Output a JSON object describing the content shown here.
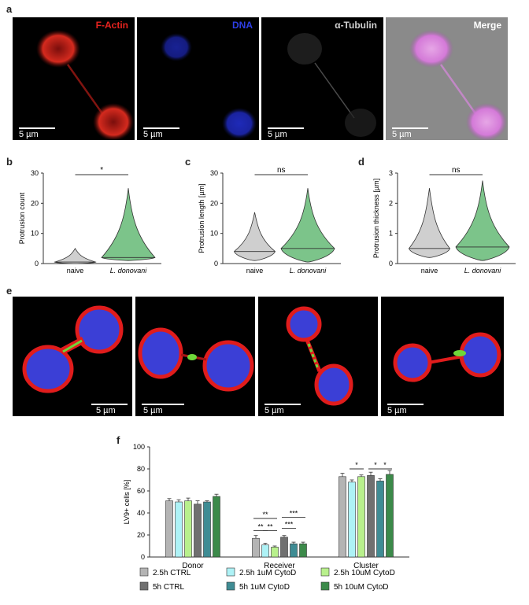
{
  "panel_a": {
    "letter": "a",
    "images": [
      {
        "label": "F-Actin",
        "label_color": "#e8231f",
        "scalebar": "5 µm"
      },
      {
        "label": "DNA",
        "label_color": "#2e3fe6",
        "scalebar": "5 µm"
      },
      {
        "label": "α-Tubulin",
        "label_color": "#d0d0d0",
        "scalebar": "5 µm"
      },
      {
        "label": "Merge",
        "label_color": "#ffffff",
        "scalebar": "5 µm"
      }
    ]
  },
  "panel_b": {
    "letter": "b",
    "ylabel": "Protrusion count",
    "yticks": [
      "0",
      "10",
      "20",
      "30"
    ],
    "categories": [
      "naive",
      "L. donovani"
    ],
    "significance": "*"
  },
  "panel_c": {
    "letter": "c",
    "ylabel": "Protrusion length [µm]",
    "yticks": [
      "0",
      "10",
      "20",
      "30"
    ],
    "categories": [
      "naive",
      "L. donovani"
    ],
    "significance": "ns"
  },
  "panel_d": {
    "letter": "d",
    "ylabel": "Protrusion thickness [µm]",
    "yticks": [
      "0",
      "1",
      "2",
      "3"
    ],
    "categories": [
      "naive",
      "L. donovani"
    ],
    "significance": "ns"
  },
  "panel_e": {
    "letter": "e",
    "scalebars": [
      "5 µm",
      "5 µm",
      "5 µm",
      "5 µm"
    ]
  },
  "panel_f": {
    "letter": "f"
  },
  "chart_data": [
    {
      "type": "violin",
      "panel": "b",
      "categories": [
        "naive",
        "L. donovani"
      ],
      "ylabel": "Protrusion count",
      "ylim": [
        0,
        30
      ],
      "medians": [
        0.5,
        2
      ],
      "maxima": [
        5,
        25
      ],
      "minima": [
        0,
        1
      ],
      "significance": "*"
    },
    {
      "type": "violin",
      "panel": "c",
      "categories": [
        "naive",
        "L. donovani"
      ],
      "ylabel": "Protrusion length [µm]",
      "ylim": [
        0,
        30
      ],
      "medians": [
        4,
        5
      ],
      "maxima": [
        17,
        25
      ],
      "minima": [
        1,
        0.5
      ],
      "significance": "ns"
    },
    {
      "type": "violin",
      "panel": "d",
      "categories": [
        "naive",
        "L. donovani"
      ],
      "ylabel": "Protrusion thickness [µm]",
      "ylim": [
        0,
        3
      ],
      "medians": [
        0.5,
        0.55
      ],
      "maxima": [
        2.5,
        2.75
      ],
      "minima": [
        0.2,
        0.1
      ],
      "significance": "ns"
    },
    {
      "type": "bar",
      "panel": "f",
      "categories": [
        "Donor",
        "Receiver",
        "Cluster"
      ],
      "ylabel": "LV9+ cells [%]",
      "ylim": [
        0,
        100
      ],
      "yticks": [
        "0",
        "20",
        "40",
        "60",
        "80",
        "100"
      ],
      "series": [
        {
          "name": "2.5h CTRL",
          "color": "#b4b4b4",
          "values": [
            51,
            17,
            73
          ],
          "errors": [
            2,
            2.5,
            3
          ]
        },
        {
          "name": "2.5h 1uM CytoD",
          "color": "#aef2f6",
          "values": [
            50,
            11,
            68
          ],
          "errors": [
            2,
            1.5,
            2
          ]
        },
        {
          "name": "2.5h 10uM CytoD",
          "color": "#b8f08c",
          "values": [
            51,
            9,
            73
          ],
          "errors": [
            2.5,
            1,
            1.5
          ]
        },
        {
          "name": "5h CTRL",
          "color": "#707070",
          "values": [
            48,
            18,
            74
          ],
          "errors": [
            3,
            1.5,
            3
          ]
        },
        {
          "name": "5h 1uM CytoD",
          "color": "#3f8c94",
          "values": [
            50,
            12,
            69
          ],
          "errors": [
            1,
            1.5,
            2
          ]
        },
        {
          "name": "5h 10uM CytoD",
          "color": "#3c8a4a",
          "values": [
            55,
            12,
            75
          ],
          "errors": [
            2,
            1.5,
            3.5
          ]
        }
      ],
      "significance": [
        "**",
        "**",
        "**",
        "***",
        "***",
        "*",
        "*",
        "*"
      ]
    }
  ]
}
